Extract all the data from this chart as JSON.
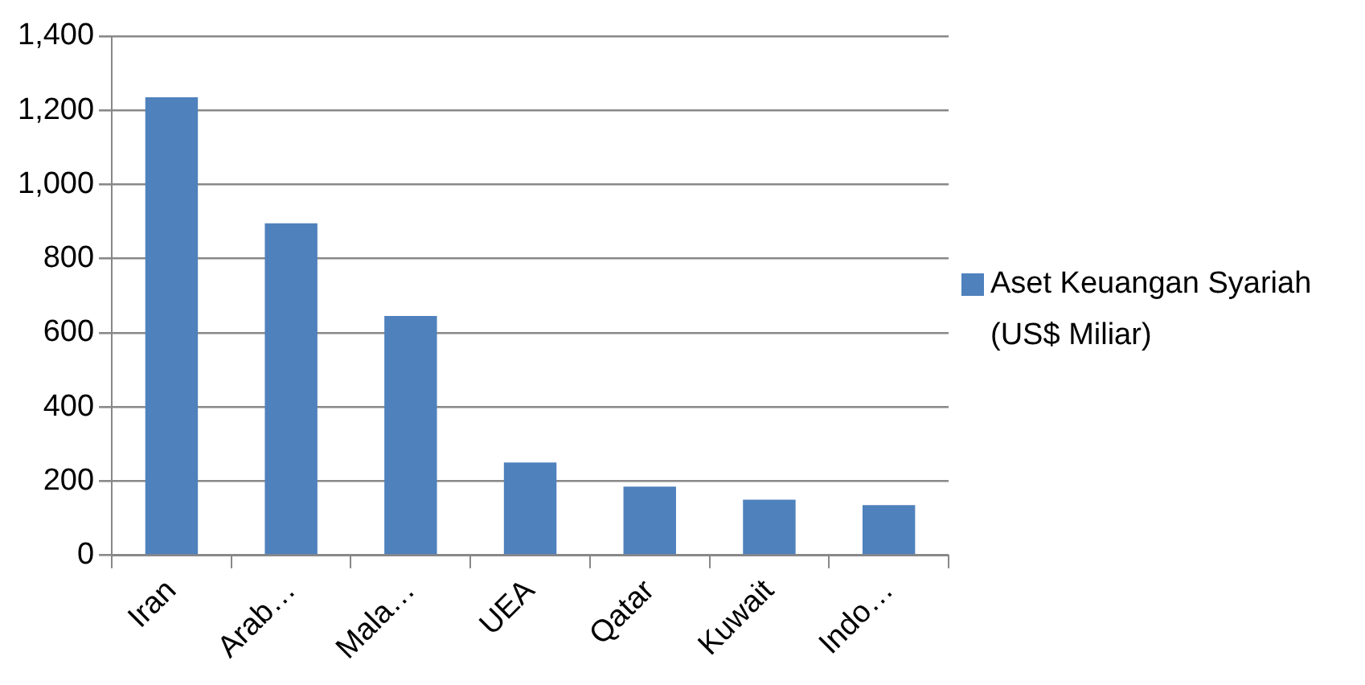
{
  "chart_data": {
    "type": "bar",
    "categories": [
      "Iran",
      "Arab…",
      "Mala…",
      "UEA",
      "Qatar",
      "Kuwait",
      "Indo…"
    ],
    "series": [
      {
        "name": "Aset Keuangan Syariah (US$ Miliar)",
        "color": "#4f81bd",
        "values": [
          1235,
          895,
          645,
          250,
          185,
          150,
          135
        ]
      }
    ],
    "ylim": [
      0,
      1400
    ],
    "yticks": [
      {
        "value": 0,
        "label": "0"
      },
      {
        "value": 200,
        "label": "200"
      },
      {
        "value": 400,
        "label": "400"
      },
      {
        "value": 600,
        "label": "600"
      },
      {
        "value": 800,
        "label": "800"
      },
      {
        "value": 1000,
        "label": "1,000"
      },
      {
        "value": 1200,
        "label": "1,200"
      },
      {
        "value": 1400,
        "label": "1,400"
      }
    ],
    "grid": "y",
    "legend": "right"
  }
}
